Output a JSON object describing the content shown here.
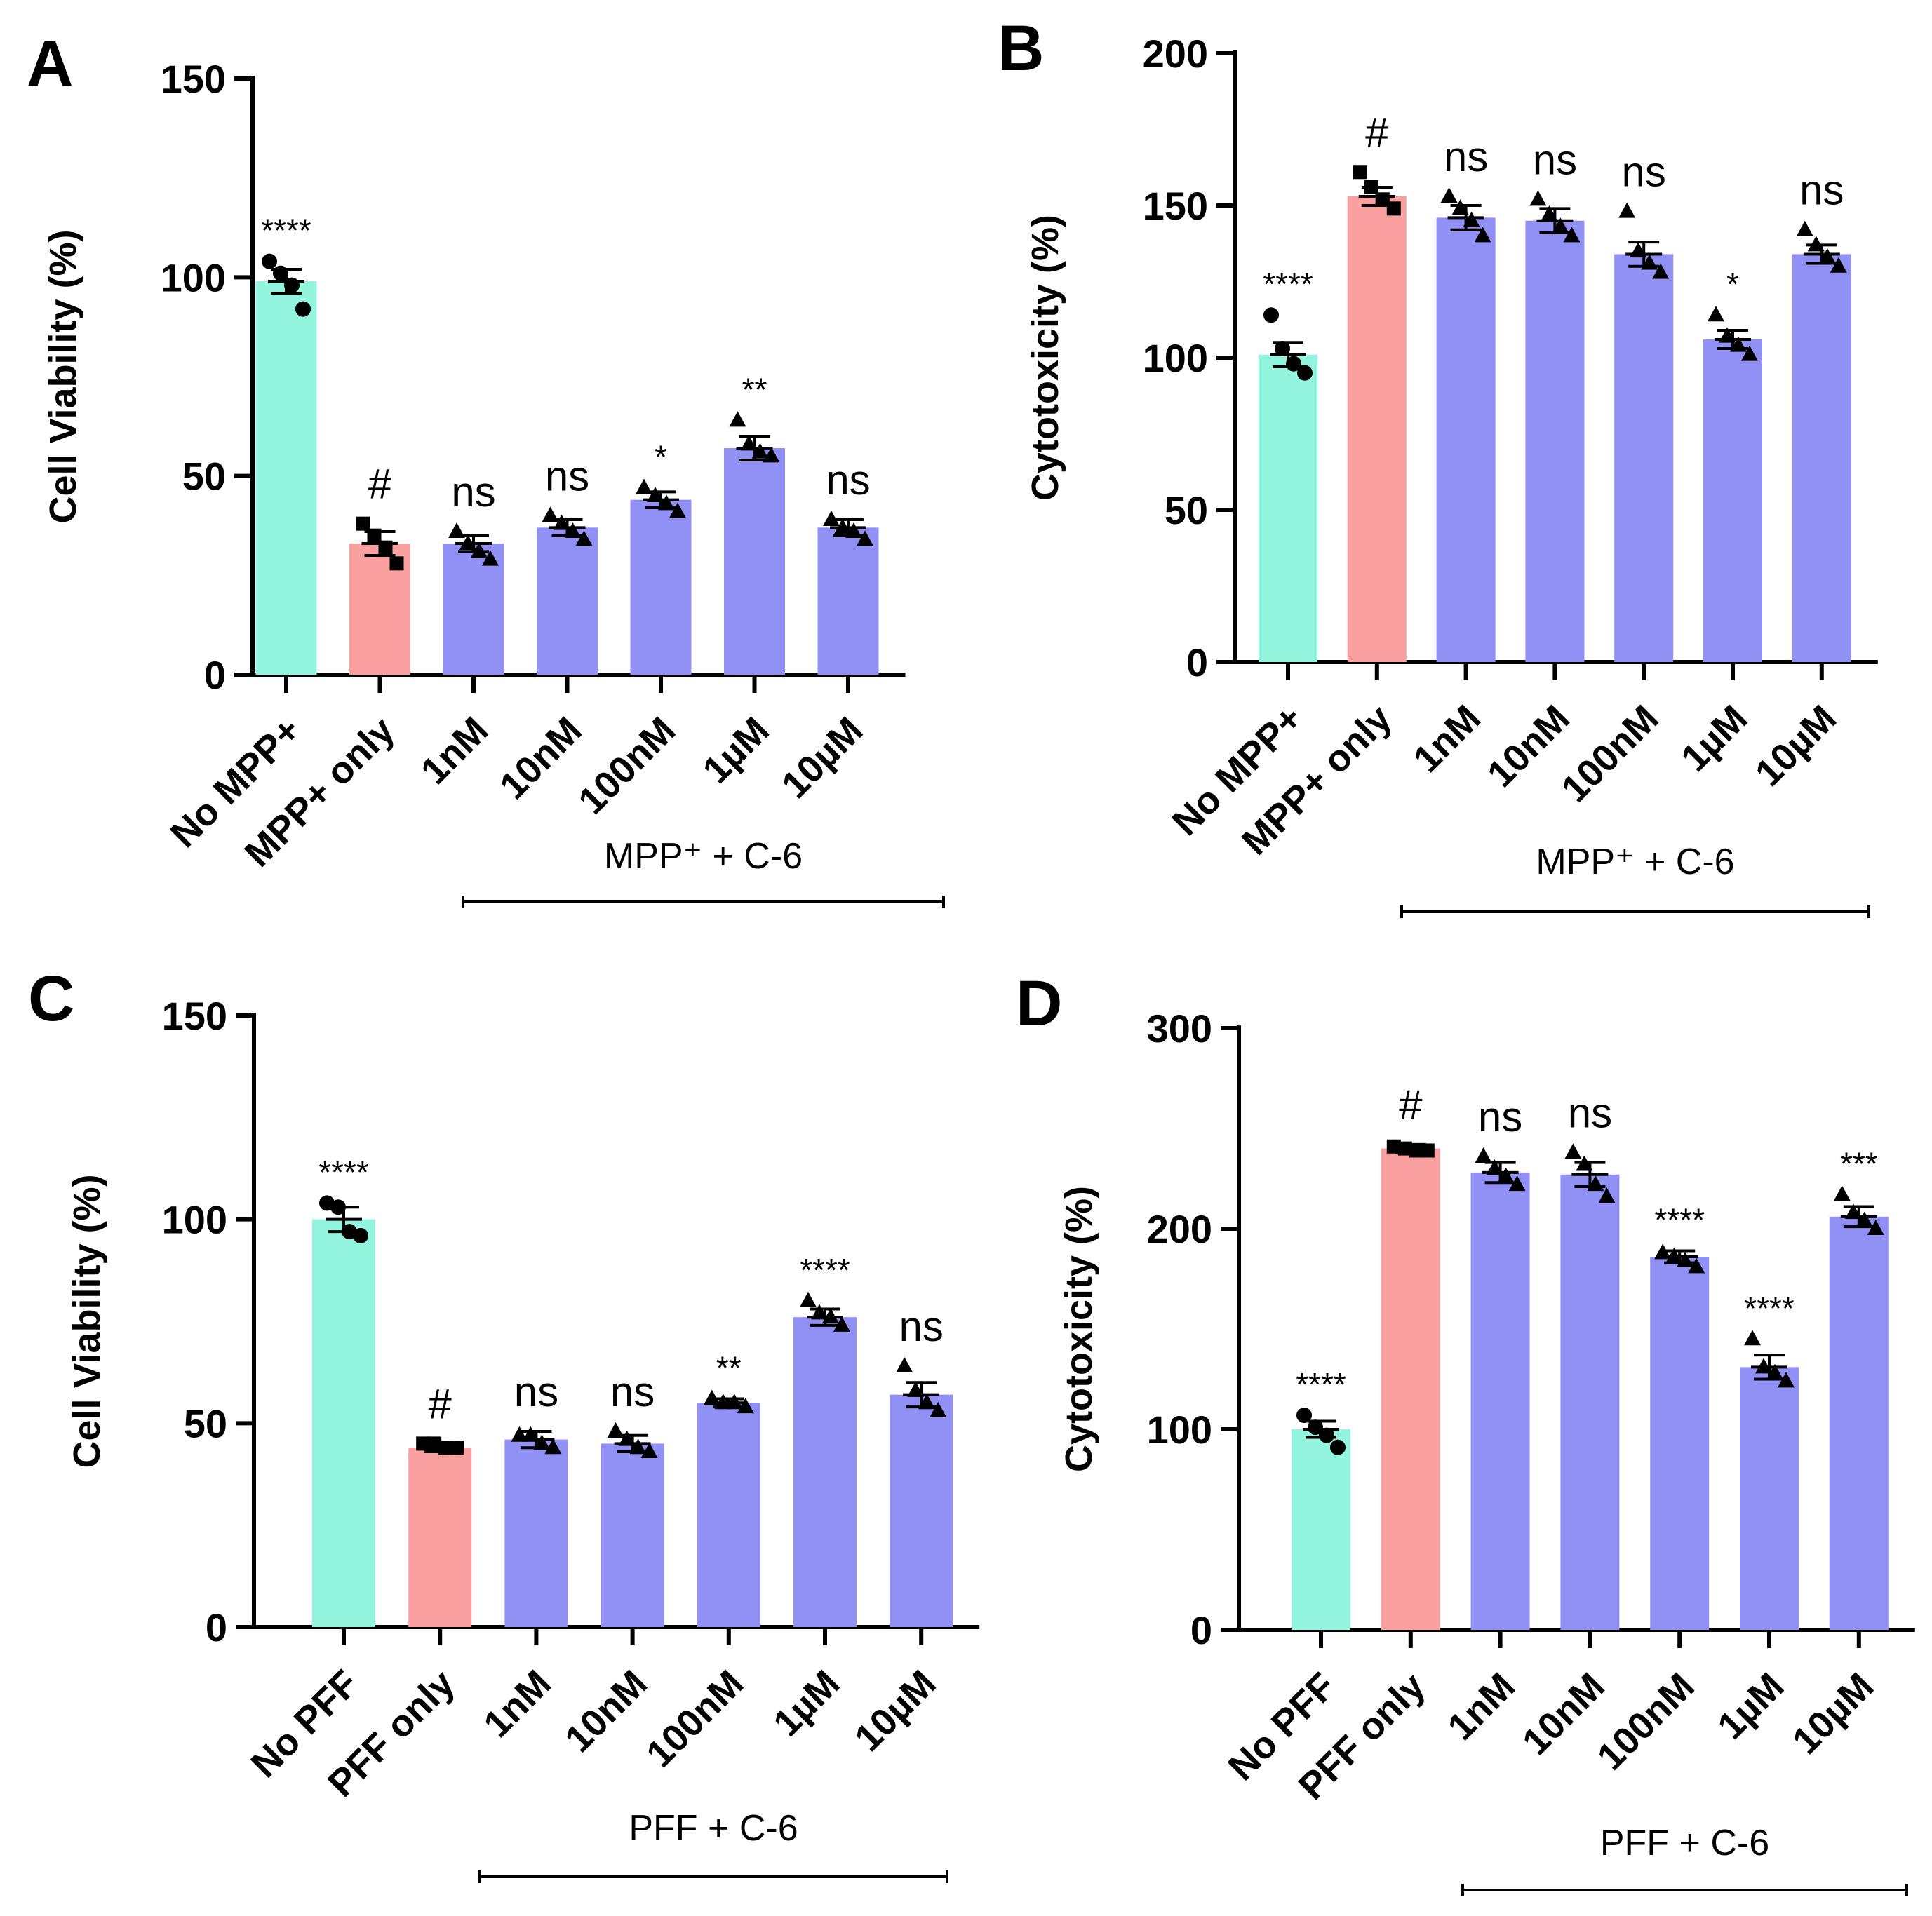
{
  "colors": {
    "control": "#93F5DE",
    "disease": "#FAA0A0",
    "treatment": "#9090F5",
    "axis": "#000000"
  },
  "chart_data": [
    {
      "panel_label": "A",
      "type": "bar",
      "ylabel": "Cell Viability (%)",
      "ylim": [
        0,
        150
      ],
      "yticks": [
        "0",
        "50",
        "100",
        "150"
      ],
      "categories": [
        "No MPP+",
        "MPP+ only",
        "1nM",
        "10nM",
        "100nM",
        "1µM",
        "10µM"
      ],
      "values": [
        99,
        33,
        33,
        37,
        44,
        57,
        37
      ],
      "sem": [
        3,
        3,
        2,
        2,
        2,
        3,
        2
      ],
      "points": [
        [
          104,
          101,
          98,
          92
        ],
        [
          38,
          35,
          32,
          28
        ],
        [
          36,
          33,
          31,
          29
        ],
        [
          40,
          38,
          36,
          34
        ],
        [
          47,
          45,
          43,
          41
        ],
        [
          64,
          58,
          56,
          55
        ],
        [
          39,
          37,
          36,
          34
        ]
      ],
      "markers": [
        "circle",
        "square",
        "triangle",
        "triangle",
        "triangle",
        "triangle",
        "triangle"
      ],
      "significance": [
        "****",
        "#",
        "ns",
        "ns",
        "*",
        "**",
        "ns"
      ],
      "group_label": "MPP⁺ + C-6",
      "group_span": [
        2,
        6
      ]
    },
    {
      "panel_label": "B",
      "type": "bar",
      "ylabel": "Cytotoxicity (%)",
      "ylim": [
        0,
        200
      ],
      "yticks": [
        "0",
        "50",
        "100",
        "150",
        "200"
      ],
      "categories": [
        "No MPP+",
        "MPP+ only",
        "1nM",
        "10nM",
        "100nM",
        "1µM",
        "10µM"
      ],
      "values": [
        101,
        153,
        146,
        145,
        134,
        106,
        134
      ],
      "sem": [
        4,
        3,
        4,
        4,
        4,
        3,
        3
      ],
      "points": [
        [
          114,
          103,
          98,
          95
        ],
        [
          161,
          156,
          152,
          149
        ],
        [
          153,
          149,
          145,
          140
        ],
        [
          152,
          147,
          143,
          140
        ],
        [
          148,
          135,
          131,
          128
        ],
        [
          114,
          107,
          104,
          101
        ],
        [
          142,
          137,
          133,
          130
        ]
      ],
      "markers": [
        "circle",
        "square",
        "triangle",
        "triangle",
        "triangle",
        "triangle",
        "triangle"
      ],
      "significance": [
        "****",
        "#",
        "ns",
        "ns",
        "ns",
        "*",
        "ns"
      ],
      "group_label": "MPP⁺ + C-6",
      "group_span": [
        2,
        6
      ]
    },
    {
      "panel_label": "C",
      "type": "bar",
      "ylabel": "Cell Viability (%)",
      "ylim": [
        0,
        150
      ],
      "yticks": [
        "0",
        "50",
        "100",
        "150"
      ],
      "categories": [
        "No PFF",
        "PFF only",
        "1nM",
        "10nM",
        "100nM",
        "1µM",
        "10µM"
      ],
      "values": [
        100,
        44,
        46,
        45,
        55,
        76,
        57
      ],
      "sem": [
        3,
        1,
        2,
        2,
        1,
        2,
        3
      ],
      "points": [
        [
          104,
          103,
          97,
          96
        ],
        [
          45,
          45,
          44,
          44
        ],
        [
          47,
          47,
          45,
          44
        ],
        [
          48,
          46,
          44,
          43
        ],
        [
          56,
          55,
          55,
          54
        ],
        [
          80,
          77,
          76,
          74
        ],
        [
          64,
          58,
          55,
          53
        ]
      ],
      "markers": [
        "circle",
        "square",
        "triangle",
        "triangle",
        "triangle",
        "triangle",
        "triangle"
      ],
      "significance": [
        "****",
        "#",
        "ns",
        "ns",
        "**",
        "****",
        "ns"
      ],
      "group_label": "PFF + C-6",
      "group_span": [
        2,
        6
      ]
    },
    {
      "panel_label": "D",
      "type": "bar",
      "ylabel": "Cytotoxicity (%)",
      "ylim": [
        0,
        300
      ],
      "yticks": [
        "0",
        "100",
        "200",
        "300"
      ],
      "categories": [
        "No PFF",
        "PFF only",
        "1nM",
        "10nM",
        "100nM",
        "1µM",
        "10µM"
      ],
      "values": [
        100,
        240,
        228,
        227,
        186,
        131,
        206
      ],
      "sem": [
        4,
        2,
        5,
        6,
        3,
        6,
        5
      ],
      "points": [
        [
          107,
          101,
          97,
          91
        ],
        [
          241,
          240,
          239,
          239
        ],
        [
          236,
          230,
          226,
          222
        ],
        [
          238,
          232,
          222,
          216
        ],
        [
          188,
          186,
          184,
          181
        ],
        [
          145,
          131,
          128,
          124
        ],
        [
          217,
          208,
          204,
          200
        ]
      ],
      "markers": [
        "circle",
        "square",
        "triangle",
        "triangle",
        "triangle",
        "triangle",
        "triangle"
      ],
      "significance": [
        "****",
        "#",
        "ns",
        "ns",
        "****",
        "****",
        "***"
      ],
      "group_label": "PFF + C-6",
      "group_span": [
        2,
        6
      ]
    }
  ]
}
